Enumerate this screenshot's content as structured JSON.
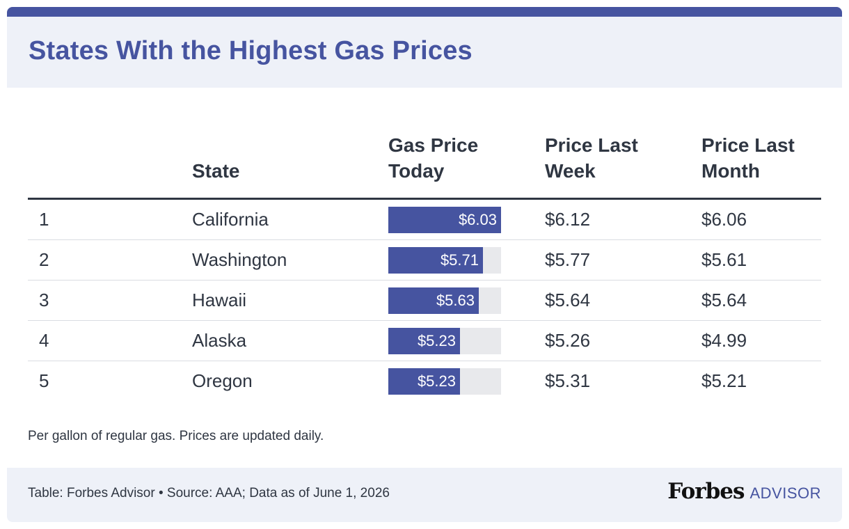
{
  "title": "States With the Highest Gas Prices",
  "headers": {
    "rank": "",
    "state": "State",
    "today": "Gas Price\nToday",
    "last_week": "Price Last\nWeek",
    "last_month": "Price Last\nMonth"
  },
  "rows": [
    {
      "rank": "1",
      "state": "California",
      "today": "$6.03",
      "last_week": "$6.12",
      "last_month": "$6.06"
    },
    {
      "rank": "2",
      "state": "Washington",
      "today": "$5.71",
      "last_week": "$5.77",
      "last_month": "$5.61"
    },
    {
      "rank": "3",
      "state": "Hawaii",
      "today": "$5.63",
      "last_week": "$5.64",
      "last_month": "$5.64"
    },
    {
      "rank": "4",
      "state": "Alaska",
      "today": "$5.23",
      "last_week": "$5.26",
      "last_month": "$4.99"
    },
    {
      "rank": "5",
      "state": "Oregon",
      "today": "$5.23",
      "last_week": "$5.31",
      "last_month": "$5.21"
    }
  ],
  "note": "Per gallon of regular gas. Prices are updated daily.",
  "footer": {
    "credit": "Table: Forbes Advisor • Source: AAA; Data as of June 1, 2026",
    "logo_main": "Forbes",
    "logo_sub": "ADVISOR"
  },
  "colors": {
    "accent": "#4654a0",
    "bar_track": "#e8e9ec",
    "header_bg": "#eef1f8",
    "text": "#2f3642"
  },
  "chart_data": {
    "type": "table",
    "title": "States With the Highest Gas Prices",
    "columns": [
      "",
      "State",
      "Gas Price Today",
      "Price Last Week",
      "Price Last Month"
    ],
    "categories": [
      "California",
      "Washington",
      "Hawaii",
      "Alaska",
      "Oregon"
    ],
    "series": [
      {
        "name": "Gas Price Today",
        "values": [
          6.03,
          5.71,
          5.63,
          5.23,
          5.23
        ]
      },
      {
        "name": "Price Last Week",
        "values": [
          6.12,
          5.77,
          5.64,
          5.26,
          5.31
        ]
      },
      {
        "name": "Price Last Month",
        "values": [
          6.06,
          5.61,
          5.64,
          4.99,
          5.21
        ]
      }
    ],
    "bar_scale_max": 6.03
  }
}
